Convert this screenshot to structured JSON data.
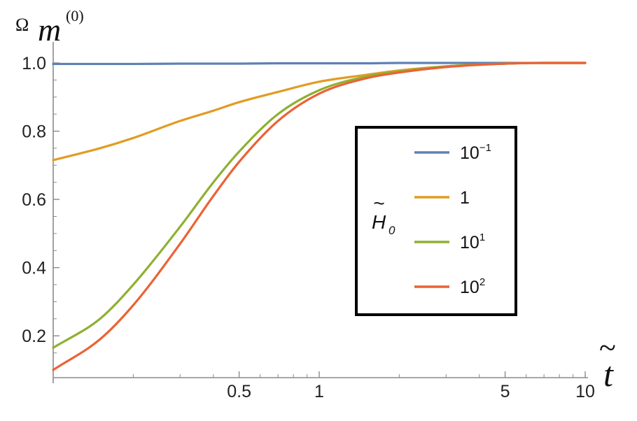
{
  "chart_data": {
    "type": "line",
    "xscale": "log",
    "xlim": [
      0.1,
      10
    ],
    "ylim": [
      0.1,
      1.0
    ],
    "xticks": [
      {
        "value": 0.5,
        "label": "0.5"
      },
      {
        "value": 1,
        "label": "1"
      },
      {
        "value": 5,
        "label": "5"
      },
      {
        "value": 10,
        "label": "10"
      }
    ],
    "yticks": [
      {
        "value": 0.2,
        "label": "0.2"
      },
      {
        "value": 0.4,
        "label": "0.4"
      },
      {
        "value": 0.6,
        "label": "0.6"
      },
      {
        "value": 0.8,
        "label": "0.8"
      },
      {
        "value": 1.0,
        "label": "1.0"
      }
    ],
    "ylabel": {
      "base": "Ω",
      "main": "m",
      "sup": "(0)"
    },
    "xlabel": {
      "tilde": "~",
      "main": "t"
    },
    "legend": {
      "title_tilde": "~",
      "title_main": "H",
      "title_sub": "0",
      "placement": "right"
    },
    "grid": false,
    "x": [
      0.1,
      0.15,
      0.2,
      0.3,
      0.4,
      0.5,
      0.7,
      1.0,
      1.5,
      2.0,
      3.0,
      5.0,
      7.0,
      10.0
    ],
    "series": [
      {
        "name": "10⁻¹",
        "name_base": "10",
        "name_sup": "−1",
        "color": "#5e81b5",
        "values": [
          0.997,
          0.997,
          0.997,
          0.998,
          0.998,
          0.998,
          0.999,
          0.999,
          0.999,
          1.0,
          1.0,
          1.0,
          1.0,
          1.0
        ]
      },
      {
        "name": "1",
        "name_base": "1",
        "name_sup": "",
        "color": "#e19c24",
        "values": [
          0.715,
          0.75,
          0.78,
          0.83,
          0.86,
          0.885,
          0.915,
          0.945,
          0.965,
          0.978,
          0.99,
          0.998,
          1.0,
          1.0
        ]
      },
      {
        "name": "10¹",
        "name_base": "10",
        "name_sup": "1",
        "color": "#8fb032",
        "values": [
          0.165,
          0.25,
          0.35,
          0.52,
          0.65,
          0.74,
          0.85,
          0.92,
          0.96,
          0.975,
          0.99,
          0.998,
          1.0,
          1.0
        ]
      },
      {
        "name": "10²",
        "name_base": "10",
        "name_sup": "2",
        "color": "#eb6235",
        "values": [
          0.1,
          0.19,
          0.29,
          0.47,
          0.61,
          0.71,
          0.83,
          0.91,
          0.955,
          0.972,
          0.988,
          0.998,
          1.0,
          1.0
        ]
      }
    ]
  }
}
